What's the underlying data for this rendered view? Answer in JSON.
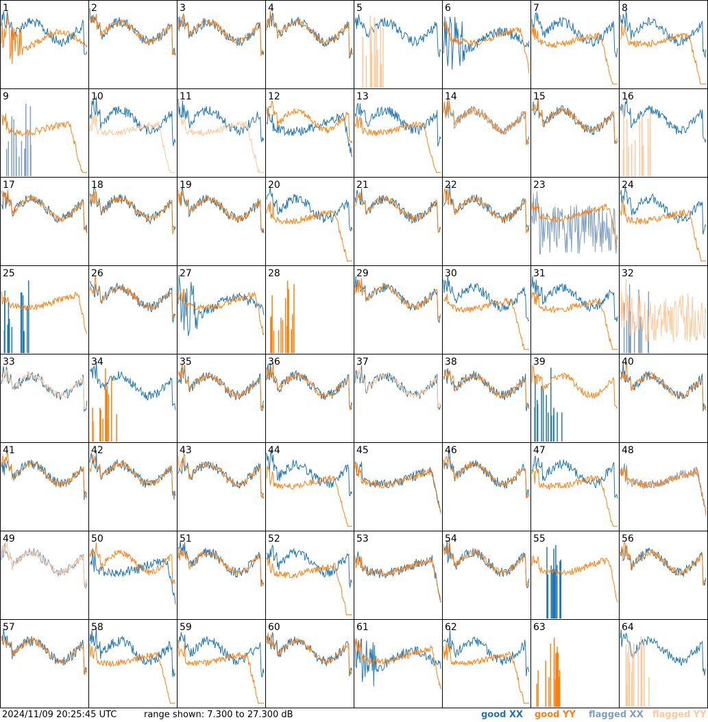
{
  "footer": {
    "timestamp": "2024/11/09 20:25:45 UTC",
    "range_text": "range shown: 7.300 to 27.300 dB"
  },
  "legend": [
    {
      "label": "good XX",
      "color": "#1f77b4"
    },
    {
      "label": "good YY",
      "color": "#ff7f0e"
    },
    {
      "label": "flagged XX",
      "color": "#7f9fbf"
    },
    {
      "label": "flagged YY",
      "color": "#ffc89a"
    }
  ],
  "chart_data": {
    "type": "line",
    "layout": "8x8 small multiples",
    "ylim": [
      7.3,
      27.3
    ],
    "yunit": "dB",
    "grid": false,
    "legend_placement": "bottom-right",
    "panels": [
      {
        "id": "1",
        "xx": "good",
        "yy": "good",
        "xx_shape": "normal",
        "yy_shape": "dropout"
      },
      {
        "id": "2",
        "xx": "good",
        "yy": "good",
        "xx_shape": "normal",
        "yy_shape": "normal"
      },
      {
        "id": "3",
        "xx": "good",
        "yy": "good",
        "xx_shape": "normal",
        "yy_shape": "normal"
      },
      {
        "id": "4",
        "xx": "good",
        "yy": "good",
        "xx_shape": "normal",
        "yy_shape": "normal"
      },
      {
        "id": "5",
        "xx": "good",
        "yy": "flagged",
        "xx_shape": "normal",
        "yy_shape": "spikes"
      },
      {
        "id": "6",
        "xx": "good",
        "yy": "good",
        "xx_shape": "dropout",
        "yy_shape": "flat"
      },
      {
        "id": "7",
        "xx": "good",
        "yy": "good",
        "xx_shape": "normal",
        "yy_shape": "droop"
      },
      {
        "id": "8",
        "xx": "good",
        "yy": "good",
        "xx_shape": "normal",
        "yy_shape": "droop"
      },
      {
        "id": "9",
        "xx": "flagged",
        "yy": "good",
        "xx_shape": "spikes",
        "yy_shape": "droop"
      },
      {
        "id": "10",
        "xx": "good",
        "yy": "flagged",
        "xx_shape": "normal",
        "yy_shape": "droop"
      },
      {
        "id": "11",
        "xx": "good",
        "yy": "flagged",
        "xx_shape": "normal",
        "yy_shape": "droop"
      },
      {
        "id": "12",
        "xx": "good",
        "yy": "good",
        "xx_shape": "flat",
        "yy_shape": "normal"
      },
      {
        "id": "13",
        "xx": "good",
        "yy": "good",
        "xx_shape": "normal",
        "yy_shape": "droop"
      },
      {
        "id": "14",
        "xx": "flagged",
        "yy": "good",
        "xx_shape": "normal",
        "yy_shape": "normal"
      },
      {
        "id": "15",
        "xx": "good",
        "yy": "good",
        "xx_shape": "normal",
        "yy_shape": "normal"
      },
      {
        "id": "16",
        "xx": "good",
        "yy": "flagged",
        "xx_shape": "normal",
        "yy_shape": "spikes"
      },
      {
        "id": "17",
        "xx": "good",
        "yy": "good",
        "xx_shape": "normal",
        "yy_shape": "normal"
      },
      {
        "id": "18",
        "xx": "good",
        "yy": "good",
        "xx_shape": "normal",
        "yy_shape": "normal"
      },
      {
        "id": "19",
        "xx": "good",
        "yy": "good",
        "xx_shape": "normal",
        "yy_shape": "normal"
      },
      {
        "id": "20",
        "xx": "good",
        "yy": "good",
        "xx_shape": "normal",
        "yy_shape": "droop"
      },
      {
        "id": "21",
        "xx": "good",
        "yy": "good",
        "xx_shape": "normal",
        "yy_shape": "normal"
      },
      {
        "id": "22",
        "xx": "good",
        "yy": "good",
        "xx_shape": "normal",
        "yy_shape": "normal"
      },
      {
        "id": "23",
        "xx": "flagged",
        "yy": "good",
        "xx_shape": "noisy",
        "yy_shape": "flat"
      },
      {
        "id": "24",
        "xx": "good",
        "yy": "good",
        "xx_shape": "normal",
        "yy_shape": "droop"
      },
      {
        "id": "25",
        "xx": "good",
        "yy": "good",
        "xx_shape": "spikes",
        "yy_shape": "flat"
      },
      {
        "id": "26",
        "xx": "good",
        "yy": "good",
        "xx_shape": "normal",
        "yy_shape": "normal"
      },
      {
        "id": "27",
        "xx": "good",
        "yy": "good",
        "xx_shape": "dropout",
        "yy_shape": "flat"
      },
      {
        "id": "28",
        "xx": "good",
        "yy": "good",
        "xx_shape": "none",
        "yy_shape": "spikes"
      },
      {
        "id": "29",
        "xx": "good",
        "yy": "good",
        "xx_shape": "normal",
        "yy_shape": "normal"
      },
      {
        "id": "30",
        "xx": "good",
        "yy": "good",
        "xx_shape": "normal",
        "yy_shape": "droop"
      },
      {
        "id": "31",
        "xx": "good",
        "yy": "good",
        "xx_shape": "normal",
        "yy_shape": "droop"
      },
      {
        "id": "32",
        "xx": "flagged",
        "yy": "flagged",
        "xx_shape": "spikes",
        "yy_shape": "noisy"
      },
      {
        "id": "33",
        "xx": "good",
        "yy": "flagged",
        "xx_shape": "normal",
        "yy_shape": "normal"
      },
      {
        "id": "34",
        "xx": "good",
        "yy": "good",
        "xx_shape": "normal",
        "yy_shape": "spikes"
      },
      {
        "id": "35",
        "xx": "good",
        "yy": "good",
        "xx_shape": "normal",
        "yy_shape": "normal"
      },
      {
        "id": "36",
        "xx": "good",
        "yy": "good",
        "xx_shape": "normal",
        "yy_shape": "normal"
      },
      {
        "id": "37",
        "xx": "good",
        "yy": "flagged",
        "xx_shape": "normal",
        "yy_shape": "normal"
      },
      {
        "id": "38",
        "xx": "good",
        "yy": "good",
        "xx_shape": "normal",
        "yy_shape": "normal"
      },
      {
        "id": "39",
        "xx": "good",
        "yy": "good",
        "xx_shape": "spikes",
        "yy_shape": "normal"
      },
      {
        "id": "40",
        "xx": "good",
        "yy": "good",
        "xx_shape": "normal",
        "yy_shape": "normal"
      },
      {
        "id": "41",
        "xx": "good",
        "yy": "good",
        "xx_shape": "normal",
        "yy_shape": "normal"
      },
      {
        "id": "42",
        "xx": "good",
        "yy": "good",
        "xx_shape": "normal",
        "yy_shape": "normal"
      },
      {
        "id": "43",
        "xx": "good",
        "yy": "good",
        "xx_shape": "normal",
        "yy_shape": "normal"
      },
      {
        "id": "44",
        "xx": "good",
        "yy": "good",
        "xx_shape": "normal",
        "yy_shape": "droop"
      },
      {
        "id": "45",
        "xx": "good",
        "yy": "good",
        "xx_shape": "flat",
        "yy_shape": "flat"
      },
      {
        "id": "46",
        "xx": "good",
        "yy": "good",
        "xx_shape": "normal",
        "yy_shape": "normal"
      },
      {
        "id": "47",
        "xx": "good",
        "yy": "good",
        "xx_shape": "normal",
        "yy_shape": "droop"
      },
      {
        "id": "48",
        "xx": "flagged",
        "yy": "good",
        "xx_shape": "flat",
        "yy_shape": "flat"
      },
      {
        "id": "49",
        "xx": "flagged",
        "yy": "flagged",
        "xx_shape": "normal",
        "yy_shape": "normal"
      },
      {
        "id": "50",
        "xx": "good",
        "yy": "good",
        "xx_shape": "flat",
        "yy_shape": "normal"
      },
      {
        "id": "51",
        "xx": "good",
        "yy": "good",
        "xx_shape": "normal",
        "yy_shape": "normal"
      },
      {
        "id": "52",
        "xx": "good",
        "yy": "good",
        "xx_shape": "normal",
        "yy_shape": "droop"
      },
      {
        "id": "53",
        "xx": "good",
        "yy": "good",
        "xx_shape": "flat",
        "yy_shape": "flat"
      },
      {
        "id": "54",
        "xx": "good",
        "yy": "good",
        "xx_shape": "normal",
        "yy_shape": "normal"
      },
      {
        "id": "55",
        "xx": "good",
        "yy": "good",
        "xx_shape": "spikes",
        "yy_shape": "flat"
      },
      {
        "id": "56",
        "xx": "good",
        "yy": "good",
        "xx_shape": "normal",
        "yy_shape": "normal"
      },
      {
        "id": "57",
        "xx": "good",
        "yy": "good",
        "xx_shape": "normal",
        "yy_shape": "normal"
      },
      {
        "id": "58",
        "xx": "good",
        "yy": "good",
        "xx_shape": "normal",
        "yy_shape": "droop"
      },
      {
        "id": "59",
        "xx": "good",
        "yy": "good",
        "xx_shape": "normal",
        "yy_shape": "droop"
      },
      {
        "id": "60",
        "xx": "good",
        "yy": "good",
        "xx_shape": "normal",
        "yy_shape": "normal"
      },
      {
        "id": "61",
        "xx": "good",
        "yy": "good",
        "xx_shape": "dropout",
        "yy_shape": "flat"
      },
      {
        "id": "62",
        "xx": "good",
        "yy": "good",
        "xx_shape": "normal",
        "yy_shape": "droop"
      },
      {
        "id": "63",
        "xx": "good",
        "yy": "good",
        "xx_shape": "none",
        "yy_shape": "spikes"
      },
      {
        "id": "64",
        "xx": "good",
        "yy": "flagged",
        "xx_shape": "normal",
        "yy_shape": "spikes"
      }
    ]
  }
}
